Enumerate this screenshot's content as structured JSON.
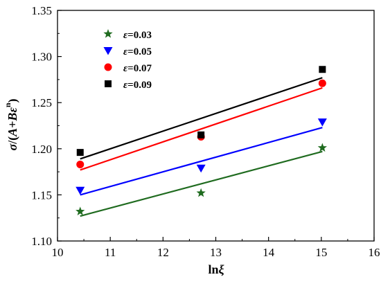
{
  "chart_data": {
    "type": "scatter",
    "title": "",
    "xlabel": {
      "prefix": "ln",
      "symbol": "ξ"
    },
    "ylabel": {
      "symbol": "σ",
      "slash": "/(",
      "A": "A",
      "plus": "+",
      "B": "B",
      "eps": "ε",
      "sup": "n",
      "close": ")"
    },
    "xlim": [
      10,
      16
    ],
    "ylim": [
      1.1,
      1.35
    ],
    "xticks": [
      "10",
      "11",
      "12",
      "13",
      "14",
      "15",
      "16"
    ],
    "yticks": [
      "1.10",
      "1.15",
      "1.20",
      "1.25",
      "1.30",
      "1.35"
    ],
    "legend_position": "top-left",
    "grid": false,
    "series": [
      {
        "name": "ε=0.03",
        "eps_symbol": "ε",
        "eps_value": "=0.03",
        "marker": "star",
        "color": "#1f6b1f",
        "x": [
          10.43,
          12.72,
          15.02
        ],
        "y": [
          1.132,
          1.152,
          1.201
        ],
        "fit": [
          [
            10.43,
            1.127
          ],
          [
            15.02,
            1.197
          ]
        ]
      },
      {
        "name": "ε=0.05",
        "eps_symbol": "ε",
        "eps_value": "=0.05",
        "marker": "triangle-down",
        "color": "#0000ff",
        "x": [
          10.43,
          12.72,
          15.02
        ],
        "y": [
          1.155,
          1.179,
          1.229
        ],
        "fit": [
          [
            10.43,
            1.15
          ],
          [
            15.02,
            1.223
          ]
        ]
      },
      {
        "name": "ε=0.07",
        "eps_symbol": "ε",
        "eps_value": "=0.07",
        "marker": "circle",
        "color": "#ff0000",
        "x": [
          10.43,
          12.72,
          15.02
        ],
        "y": [
          1.183,
          1.213,
          1.271
        ],
        "fit": [
          [
            10.43,
            1.177
          ],
          [
            15.02,
            1.266
          ]
        ]
      },
      {
        "name": "ε=0.09",
        "eps_symbol": "ε",
        "eps_value": "=0.09",
        "marker": "square",
        "color": "#000000",
        "x": [
          10.43,
          12.72,
          15.02
        ],
        "y": [
          1.196,
          1.215,
          1.286
        ],
        "fit": [
          [
            10.43,
            1.189
          ],
          [
            15.02,
            1.277
          ]
        ]
      }
    ]
  }
}
